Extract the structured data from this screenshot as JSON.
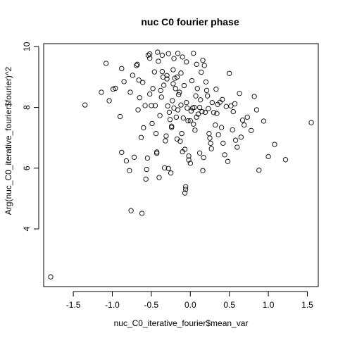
{
  "chart_data": {
    "type": "scatter",
    "title": "nuc C0 fourier phase",
    "xlabel": "nuc_C0_iterative_fourier$mean_var",
    "ylabel": "Arg(nuc_C0_iterative_fourier$fourier)^2",
    "xlim": [
      -1.88,
      1.64
    ],
    "ylim": [
      2.1,
      10.1
    ],
    "xticks": [
      -1.5,
      -1.0,
      -0.5,
      0.0,
      0.5,
      1.0,
      1.5
    ],
    "xtick_labels": [
      "-1.5",
      "-1.0",
      "-0.5",
      "0.0",
      "0.5",
      "1.0",
      "1.5"
    ],
    "yticks": [
      4,
      6,
      8,
      10
    ],
    "ytick_labels": [
      "4",
      "6",
      "8",
      "10"
    ],
    "grid": false,
    "marker": "open-circle",
    "color": "#000000",
    "series": [
      {
        "points": [
          [
            -1.79,
            2.42
          ],
          [
            -1.35,
            8.08
          ],
          [
            -1.08,
            9.45
          ],
          [
            -1.14,
            8.5
          ],
          [
            -1.04,
            8.22
          ],
          [
            -0.99,
            8.6
          ],
          [
            -0.96,
            8.63
          ],
          [
            -0.9,
            7.7
          ],
          [
            -0.88,
            6.52
          ],
          [
            -0.82,
            6.24
          ],
          [
            -0.78,
            5.92
          ],
          [
            -0.76,
            4.6
          ],
          [
            -0.72,
            6.36
          ],
          [
            -0.88,
            9.28
          ],
          [
            -0.85,
            8.85
          ],
          [
            -0.77,
            8.5
          ],
          [
            -0.74,
            9.06
          ],
          [
            -0.69,
            9.38
          ],
          [
            -0.68,
            9.42
          ],
          [
            -0.67,
            7.92
          ],
          [
            -0.65,
            8.32
          ],
          [
            -0.66,
            8.9
          ],
          [
            -0.61,
            8.82
          ],
          [
            -0.63,
            7.01
          ],
          [
            -0.6,
            7.33
          ],
          [
            -0.62,
            4.51
          ],
          [
            -0.58,
            8.06
          ],
          [
            -0.57,
            5.64
          ],
          [
            -0.56,
            5.96
          ],
          [
            -0.55,
            6.33
          ],
          [
            -0.54,
            9.72
          ],
          [
            -0.52,
            9.62
          ],
          [
            -0.52,
            9.76
          ],
          [
            -0.52,
            8.44
          ],
          [
            -0.5,
            8.06
          ],
          [
            -0.49,
            7.47
          ],
          [
            -0.48,
            8.62
          ],
          [
            -0.46,
            9.17
          ],
          [
            -0.45,
            8.06
          ],
          [
            -0.44,
            7.14
          ],
          [
            -0.43,
            6.53
          ],
          [
            -0.43,
            6.49
          ],
          [
            -0.42,
            9.82
          ],
          [
            -0.41,
            9.52
          ],
          [
            -0.4,
            5.69
          ],
          [
            -0.39,
            7.73
          ],
          [
            -0.38,
            8.56
          ],
          [
            -0.37,
            8.34
          ],
          [
            -0.36,
            9.18
          ],
          [
            -0.36,
            9.72
          ],
          [
            -0.35,
            9.0
          ],
          [
            -0.34,
            8.73
          ],
          [
            -0.33,
            6.01
          ],
          [
            -0.32,
            6.9
          ],
          [
            -0.31,
            7.06
          ],
          [
            -0.3,
            8.94
          ],
          [
            -0.3,
            9.05
          ],
          [
            -0.29,
            8.05
          ],
          [
            -0.28,
            5.99
          ],
          [
            -0.28,
            9.77
          ],
          [
            -0.27,
            7.84
          ],
          [
            -0.26,
            7.6
          ],
          [
            -0.25,
            5.84
          ],
          [
            -0.24,
            7.38
          ],
          [
            -0.24,
            7.34
          ],
          [
            -0.23,
            8.22
          ],
          [
            -0.22,
            9.24
          ],
          [
            -0.22,
            8.78
          ],
          [
            -0.21,
            9.61
          ],
          [
            -0.21,
            7.98
          ],
          [
            -0.2,
            8.96
          ],
          [
            -0.19,
            8.62
          ],
          [
            -0.18,
            7.68
          ],
          [
            -0.17,
            9.0
          ],
          [
            -0.17,
            6.96
          ],
          [
            -0.16,
            7.92
          ],
          [
            -0.16,
            9.78
          ],
          [
            -0.15,
            8.42
          ],
          [
            -0.14,
            8.5
          ],
          [
            -0.13,
            6.89
          ],
          [
            -0.12,
            8.08
          ],
          [
            -0.12,
            9.13
          ],
          [
            -0.11,
            7.14
          ],
          [
            -0.1,
            9.66
          ],
          [
            -0.1,
            6.54
          ],
          [
            -0.09,
            7.65
          ],
          [
            -0.08,
            8.72
          ],
          [
            -0.07,
            6.62
          ],
          [
            -0.07,
            5.18
          ],
          [
            -0.06,
            5.3
          ],
          [
            -0.06,
            5.39
          ],
          [
            -0.05,
            8.16
          ],
          [
            -0.05,
            9.5
          ],
          [
            -0.04,
            7.98
          ],
          [
            -0.03,
            7.56
          ],
          [
            -0.02,
            6.4
          ],
          [
            -0.02,
            6.27
          ],
          [
            0.0,
            6.16
          ],
          [
            0.0,
            7.56
          ],
          [
            0.01,
            7.88
          ],
          [
            0.02,
            8.88
          ],
          [
            0.03,
            7.98
          ],
          [
            0.04,
            7.45
          ],
          [
            0.04,
            9.78
          ],
          [
            0.05,
            8.0
          ],
          [
            0.06,
            7.25
          ],
          [
            0.07,
            8.38
          ],
          [
            0.08,
            7.68
          ],
          [
            0.08,
            9.42
          ],
          [
            0.09,
            8.62
          ],
          [
            0.1,
            7.78
          ],
          [
            0.12,
            8.0
          ],
          [
            0.12,
            6.5
          ],
          [
            0.13,
            8.25
          ],
          [
            0.14,
            9.16
          ],
          [
            0.15,
            7.86
          ],
          [
            0.16,
            9.55
          ],
          [
            0.16,
            5.92
          ],
          [
            0.17,
            6.35
          ],
          [
            0.18,
            9.38
          ],
          [
            0.19,
            7.84
          ],
          [
            0.2,
            8.84
          ],
          [
            0.21,
            8.56
          ],
          [
            0.22,
            8.38
          ],
          [
            0.23,
            7.96
          ],
          [
            0.24,
            7.14
          ],
          [
            0.25,
            6.99
          ],
          [
            0.26,
            6.82
          ],
          [
            0.27,
            6.64
          ],
          [
            0.28,
            8.16
          ],
          [
            0.3,
            7.83
          ],
          [
            0.32,
            7.42
          ],
          [
            0.33,
            8.6
          ],
          [
            0.34,
            7.8
          ],
          [
            0.35,
            8.1
          ],
          [
            0.36,
            7.1
          ],
          [
            0.38,
            8.17
          ],
          [
            0.4,
            7.34
          ],
          [
            0.41,
            8.26
          ],
          [
            0.42,
            6.82
          ],
          [
            0.44,
            6.44
          ],
          [
            0.46,
            8.03
          ],
          [
            0.48,
            6.22
          ],
          [
            0.5,
            9.12
          ],
          [
            0.52,
            8.05
          ],
          [
            0.54,
            7.26
          ],
          [
            0.55,
            7.86
          ],
          [
            0.57,
            8.12
          ],
          [
            0.58,
            6.92
          ],
          [
            0.6,
            6.69
          ],
          [
            0.63,
            8.46
          ],
          [
            0.65,
            7.02
          ],
          [
            0.67,
            7.58
          ],
          [
            0.69,
            7.42
          ],
          [
            0.73,
            7.68
          ],
          [
            0.78,
            7.24
          ],
          [
            0.82,
            8.36
          ],
          [
            0.85,
            7.92
          ],
          [
            0.88,
            5.93
          ],
          [
            0.94,
            7.55
          ],
          [
            1.0,
            6.38
          ],
          [
            1.08,
            6.78
          ],
          [
            1.22,
            6.28
          ],
          [
            1.55,
            7.5
          ]
        ]
      }
    ]
  }
}
